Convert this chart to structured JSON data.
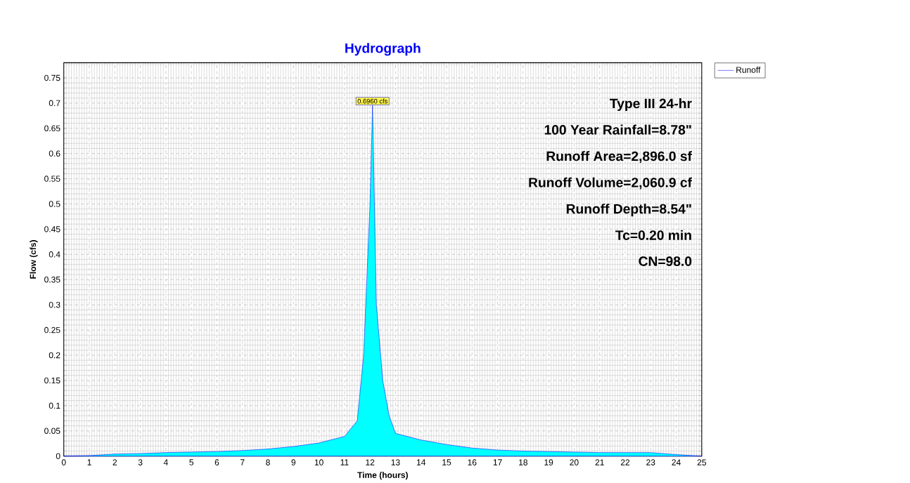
{
  "chart_data": {
    "type": "area",
    "title": "Hydrograph",
    "xlabel": "Time  (hours)",
    "ylabel": "Flow  (cfs)",
    "x": [
      0,
      1,
      2,
      3,
      4,
      5,
      6,
      7,
      8,
      9,
      10,
      11,
      11.5,
      11.75,
      12,
      12.1,
      12.25,
      12.5,
      12.75,
      13,
      14,
      15,
      16,
      17,
      18,
      19,
      20,
      21,
      22,
      23,
      24,
      25
    ],
    "series": [
      {
        "name": "Runoff",
        "color": "#00ffff",
        "values": [
          0,
          0.001,
          0.004,
          0.005,
          0.007,
          0.008,
          0.009,
          0.011,
          0.014,
          0.019,
          0.026,
          0.039,
          0.07,
          0.2,
          0.5,
          0.696,
          0.3,
          0.15,
          0.08,
          0.045,
          0.032,
          0.023,
          0.016,
          0.012,
          0.01,
          0.009,
          0.008,
          0.007,
          0.007,
          0.007,
          0.003,
          0
        ]
      }
    ],
    "xlim": [
      0,
      25
    ],
    "xticks": [
      0,
      1,
      2,
      3,
      4,
      5,
      6,
      7,
      8,
      9,
      10,
      11,
      12,
      13,
      14,
      15,
      16,
      17,
      18,
      19,
      20,
      21,
      22,
      23,
      24,
      25
    ],
    "ylim": [
      0,
      0.78
    ],
    "yticks": [
      0,
      0.05,
      0.1,
      0.15,
      0.2,
      0.25,
      0.3,
      0.35,
      0.4,
      0.45,
      0.5,
      0.55,
      0.6,
      0.65,
      0.7,
      0.75
    ],
    "grid": true,
    "legend": "top right",
    "annotations": [
      {
        "text": "0.6960 cfs",
        "x": 12.1,
        "y": 0.696
      },
      "Type III 24-hr",
      "100 Year Rainfall=8.78\"",
      "Runoff Area=2,896.0 sf",
      "Runoff Volume=2,060.9 cf",
      "Runoff Depth=8.54\"",
      "Tc=0.20 min",
      "CN=98.0"
    ]
  }
}
